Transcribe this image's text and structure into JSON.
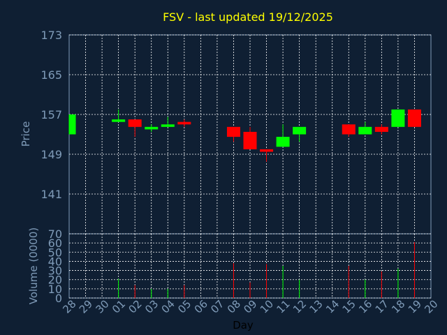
{
  "chart_data": [
    {
      "type": "candlestick",
      "title": "FSV - last updated 19/12/2025",
      "ylabel": "Price",
      "xlabel": "Day",
      "ylim": [
        133,
        173
      ],
      "yticks": [
        "173",
        "165",
        "157",
        "149",
        "141"
      ],
      "grid": true,
      "colors": {
        "up": "#00ff00",
        "down": "#ff0000",
        "title": "#ffff00",
        "background": "#0f1f33",
        "axis_text": "#7f9bb8",
        "grid": "#ffffff"
      },
      "x_days": [
        "28",
        "29",
        "30",
        "01",
        "02",
        "03",
        "04",
        "05",
        "06",
        "07",
        "08",
        "09",
        "10",
        "11",
        "12",
        "13",
        "14",
        "15",
        "16",
        "17",
        "18",
        "19",
        "20"
      ],
      "candles": [
        {
          "day": "28",
          "open": 153.0,
          "close": 157.0,
          "high": 157.0,
          "low": 153.0
        },
        {
          "day": "01",
          "open": 155.5,
          "close": 156.0,
          "high": 158.0,
          "low": 155.5
        },
        {
          "day": "02",
          "open": 156.0,
          "close": 154.5,
          "high": 156.0,
          "low": 152.5
        },
        {
          "day": "03",
          "open": 154.0,
          "close": 154.5,
          "high": 155.0,
          "low": 153.5
        },
        {
          "day": "04",
          "open": 154.5,
          "close": 155.0,
          "high": 156.5,
          "low": 154.5
        },
        {
          "day": "05",
          "open": 155.5,
          "close": 155.0,
          "high": 156.0,
          "low": 154.5
        },
        {
          "day": "08",
          "open": 154.5,
          "close": 152.5,
          "high": 154.5,
          "low": 151.5
        },
        {
          "day": "09",
          "open": 153.5,
          "close": 150.0,
          "high": 154.5,
          "low": 150.0
        },
        {
          "day": "10",
          "open": 150.0,
          "close": 149.5,
          "high": 150.0,
          "low": 147.5
        },
        {
          "day": "11",
          "open": 150.5,
          "close": 152.5,
          "high": 155.0,
          "low": 150.5
        },
        {
          "day": "12",
          "open": 153.0,
          "close": 154.5,
          "high": 154.5,
          "low": 151.5
        },
        {
          "day": "15",
          "open": 155.0,
          "close": 153.0,
          "high": 155.0,
          "low": 152.5
        },
        {
          "day": "16",
          "open": 153.0,
          "close": 154.5,
          "high": 155.5,
          "low": 153.0
        },
        {
          "day": "17",
          "open": 154.5,
          "close": 153.5,
          "high": 155.0,
          "low": 153.0
        },
        {
          "day": "18",
          "open": 154.5,
          "close": 158.0,
          "high": 158.0,
          "low": 154.5
        },
        {
          "day": "19",
          "open": 158.0,
          "close": 154.5,
          "high": 158.0,
          "low": 154.5
        }
      ]
    },
    {
      "type": "bar",
      "ylabel": "Volume (0000)",
      "xlabel": "Day",
      "ylim": [
        0,
        70
      ],
      "yticks": [
        "0",
        "10",
        "20",
        "30",
        "40",
        "50",
        "60",
        "70"
      ],
      "grid": true,
      "x_days": [
        "28",
        "29",
        "30",
        "01",
        "02",
        "03",
        "04",
        "05",
        "06",
        "07",
        "08",
        "09",
        "10",
        "11",
        "12",
        "13",
        "14",
        "15",
        "16",
        "17",
        "18",
        "19",
        "20"
      ],
      "bars": [
        {
          "day": "01",
          "value": 21,
          "direction": "up"
        },
        {
          "day": "02",
          "value": 14,
          "direction": "down"
        },
        {
          "day": "03",
          "value": 10,
          "direction": "up"
        },
        {
          "day": "04",
          "value": 10,
          "direction": "up"
        },
        {
          "day": "05",
          "value": 14,
          "direction": "down"
        },
        {
          "day": "08",
          "value": 38,
          "direction": "down"
        },
        {
          "day": "09",
          "value": 17,
          "direction": "down"
        },
        {
          "day": "10",
          "value": 37,
          "direction": "down"
        },
        {
          "day": "11",
          "value": 35,
          "direction": "up"
        },
        {
          "day": "12",
          "value": 20,
          "direction": "up"
        },
        {
          "day": "15",
          "value": 35,
          "direction": "down"
        },
        {
          "day": "16",
          "value": 20,
          "direction": "up"
        },
        {
          "day": "17",
          "value": 29,
          "direction": "down"
        },
        {
          "day": "18",
          "value": 32,
          "direction": "up"
        },
        {
          "day": "19",
          "value": 61,
          "direction": "down"
        }
      ]
    }
  ]
}
